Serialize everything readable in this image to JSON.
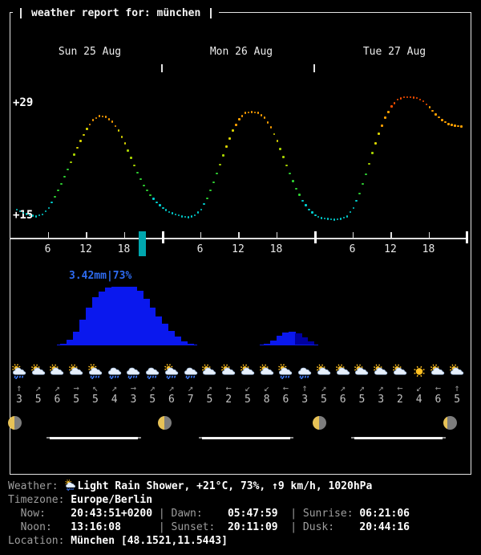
{
  "window": {
    "title": "weather report for: münchen"
  },
  "days": [
    {
      "label": "Sun 25 Aug"
    },
    {
      "label": "Mon 26 Aug"
    },
    {
      "label": "Tue 27 Aug"
    }
  ],
  "temp_axis": {
    "top": "+29",
    "bottom": "+15"
  },
  "time_axis": {
    "ticks": [
      "6",
      "12",
      "18"
    ]
  },
  "precipitation": {
    "peak_label": "3.42mm|73%",
    "dim_hours": [
      45,
      46,
      47
    ]
  },
  "chart_data": {
    "type": "line+bar",
    "title": "weather report for: münchen",
    "x": "hours 0-71 starting Sun 25 Aug 00:00, 3 days",
    "x_tick_labels_per_day": [
      "6",
      "12",
      "18"
    ],
    "series": [
      {
        "name": "temperature",
        "type": "line",
        "unit": "°C",
        "ylim": [
          15,
          29
        ],
        "values": [
          16.2,
          15.8,
          15.4,
          15.1,
          15.0,
          15.2,
          16.0,
          17.4,
          19.0,
          20.8,
          22.6,
          24.3,
          25.8,
          26.9,
          27.4,
          27.3,
          26.7,
          25.6,
          24.0,
          22.2,
          20.4,
          18.8,
          17.6,
          16.7,
          16.0,
          15.5,
          15.2,
          15.0,
          14.9,
          15.1,
          15.8,
          17.2,
          19.2,
          21.4,
          23.6,
          25.6,
          27.0,
          27.8,
          27.9,
          27.8,
          27.2,
          26.0,
          24.3,
          22.3,
          20.3,
          18.4,
          16.9,
          15.8,
          15.1,
          14.8,
          14.7,
          14.6,
          14.7,
          15.0,
          16.0,
          17.8,
          20.2,
          22.8,
          25.2,
          27.2,
          28.6,
          29.4,
          29.7,
          29.7,
          29.6,
          29.2,
          28.5,
          27.6,
          26.9,
          26.4,
          26.2,
          26.1
        ]
      },
      {
        "name": "precipitation",
        "type": "bar",
        "unit": "mm",
        "peak_annotation": "3.42mm|73%",
        "values": [
          0,
          0,
          0,
          0,
          0,
          0,
          0,
          0,
          0.1,
          0.35,
          0.8,
          1.5,
          2.2,
          2.8,
          3.15,
          3.35,
          3.42,
          3.42,
          3.42,
          3.42,
          3.2,
          2.7,
          2.2,
          1.7,
          1.25,
          0.85,
          0.5,
          0.25,
          0.1,
          0,
          0,
          0,
          0,
          0,
          0,
          0,
          0,
          0,
          0,
          0,
          0.08,
          0.3,
          0.55,
          0.75,
          0.8,
          0.7,
          0.45,
          0.25,
          0,
          0,
          0,
          0,
          0,
          0,
          0,
          0,
          0,
          0,
          0,
          0,
          0,
          0,
          0,
          0,
          0,
          0,
          0,
          0,
          0,
          0,
          0,
          0
        ]
      }
    ],
    "axis_labels": {
      "temp_max": "+29",
      "temp_min": "+15"
    },
    "legend": "none",
    "grid": "off"
  },
  "forecast_days": [
    {
      "icons": [
        "sun-rain",
        "sun-cloud",
        "sun-cloud",
        "sun-cloud",
        "sun-rain",
        "rain",
        "rain",
        "rain"
      ],
      "wind_dirs": [
        "↑",
        "↗",
        "↗",
        "→",
        "↖",
        "↗",
        "→",
        "↗"
      ],
      "wind_speeds": [
        "3",
        "5",
        "6",
        "5",
        "5",
        "4",
        "3",
        "5"
      ]
    },
    {
      "icons": [
        "sun-rain",
        "rain",
        "sun-cloud",
        "sun-cloud",
        "sun-cloud",
        "sun-cloud",
        "sun-rain",
        "rain"
      ],
      "wind_dirs": [
        "↗",
        "↗",
        "↗",
        "←",
        "↙",
        "↙",
        "←",
        "↑"
      ],
      "wind_speeds": [
        "6",
        "7",
        "5",
        "2",
        "5",
        "8",
        "6",
        "3"
      ]
    },
    {
      "icons": [
        "sun-cloud",
        "sun-cloud",
        "sun-cloud",
        "sun-cloud",
        "sun-cloud",
        "sun",
        "sun-cloud",
        "sun-cloud"
      ],
      "wind_dirs": [
        "↗",
        "↗",
        "↗",
        "↗",
        "←",
        "↙",
        "←",
        "↑"
      ],
      "wind_speeds": [
        "5",
        "6",
        "5",
        "3",
        "2",
        "4",
        "6",
        "5"
      ]
    }
  ],
  "astronomy": {
    "moon_phases": [
      "last-quarter",
      "last-quarter",
      "last-quarter",
      "waning-crescent"
    ]
  },
  "footer": {
    "lines": [
      {
        "name": "weather-line",
        "segments": [
          {
            "t": "Weather: ",
            "c": "lbl"
          },
          {
            "icon": "sun-rain"
          },
          {
            "t": "Light Rain Shower, +21°C, 73%, ↑9 km/h, 1020hPa",
            "c": "val"
          }
        ]
      },
      {
        "name": "timezone-line",
        "segments": [
          {
            "t": "Timezone: ",
            "c": "lbl"
          },
          {
            "t": "Europe/Berlin",
            "c": "val"
          }
        ]
      },
      {
        "name": "times-line-1",
        "segments": [
          {
            "t": "  Now:    ",
            "c": "lbl"
          },
          {
            "t": "20:43:51+0200",
            "c": "val"
          },
          {
            "t": " | ",
            "c": "lbl"
          },
          {
            "t": "Dawn:    ",
            "c": "lbl"
          },
          {
            "t": "05:47:59",
            "c": "val"
          },
          {
            "t": "  | ",
            "c": "lbl"
          },
          {
            "t": "Sunrise: ",
            "c": "lbl"
          },
          {
            "t": "06:21:06",
            "c": "val"
          }
        ]
      },
      {
        "name": "times-line-2",
        "segments": [
          {
            "t": "  Noon:   ",
            "c": "lbl"
          },
          {
            "t": "13:16:08",
            "c": "val"
          },
          {
            "t": "      | ",
            "c": "lbl"
          },
          {
            "t": "Sunset:  ",
            "c": "lbl"
          },
          {
            "t": "20:11:09",
            "c": "val"
          },
          {
            "t": "  | ",
            "c": "lbl"
          },
          {
            "t": "Dusk:    ",
            "c": "lbl"
          },
          {
            "t": "20:44:16",
            "c": "val"
          }
        ]
      },
      {
        "name": "location-line",
        "segments": [
          {
            "t": "Location: ",
            "c": "lbl"
          },
          {
            "t": "München [48.1521,11.5443]",
            "c": "val"
          }
        ]
      }
    ]
  },
  "colors": {
    "background": "#000000",
    "frame": "#e3e3e3",
    "temp_cyan": "#00cfcf",
    "temp_green": "#2fd132",
    "temp_lime": "#a8d400",
    "temp_yellow": "#d9d400",
    "temp_orange": "#ffa000",
    "temp_red": "#ff5000",
    "precip_bar": "#0a18ee",
    "precip_bar_dim": "#0000a0",
    "precip_label": "#2e6bf0",
    "now_marker": "#00a6ae",
    "daylight": "#f2f2f2",
    "twilight": "#8c8c8c",
    "moon_lit": "#e7c257",
    "moon_dark": "#7d7d7d"
  }
}
